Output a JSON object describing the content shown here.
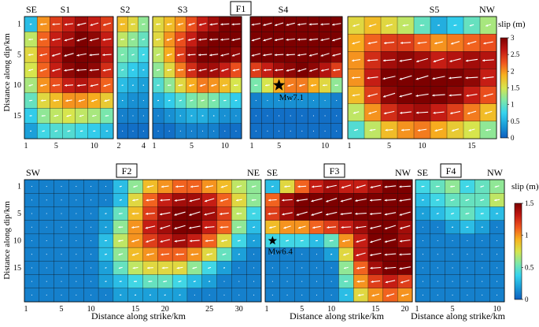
{
  "figure": {
    "top_ylabel": "Distance along dip/km",
    "bottom_ylabel": "Distance along dip/km",
    "xlabel": "Distance along strike/km",
    "grid_colors": {
      "cell_border": "#111111",
      "arrow": "#ffffff"
    }
  },
  "colormap": {
    "name": "jet",
    "stops": [
      "#0f5fbf",
      "#1a9cd8",
      "#36d3ee",
      "#7ee8a8",
      "#d7e54d",
      "#f7b21f",
      "#f0561f",
      "#c21913",
      "#7d0000"
    ]
  },
  "colorbars": [
    {
      "id": "top",
      "title": "slip (m)",
      "min": 0,
      "max": 3,
      "ticks": [
        "0",
        "0.5",
        "1",
        "1.5",
        "2",
        "2.5",
        "3"
      ]
    },
    {
      "id": "bottom",
      "title": "slip (m)",
      "min": 0,
      "max": 1.5,
      "ticks": [
        "0",
        "0.5",
        "1",
        "1.5"
      ]
    }
  ],
  "chart_data": [
    {
      "type": "heatmap",
      "id": "S1",
      "row": "top",
      "fault_label": "S1",
      "corner_left": "SE",
      "rows": 8,
      "cols": 7,
      "xticks": [
        {
          "label": "1",
          "col": 0
        },
        {
          "label": "5",
          "col": 2
        },
        {
          "label": "10",
          "col": 5
        }
      ],
      "yticks": [
        {
          "label": "1",
          "row": 0
        },
        {
          "label": "5",
          "row": 2
        },
        {
          "label": "10",
          "row": 4
        },
        {
          "label": "15",
          "row": 6
        }
      ],
      "values": [
        [
          0.6,
          2.0,
          2.4,
          2.6,
          2.8,
          2.6,
          2.4
        ],
        [
          1.4,
          2.2,
          2.6,
          2.8,
          3.0,
          2.9,
          2.6
        ],
        [
          1.6,
          2.3,
          2.7,
          3.0,
          3.0,
          3.0,
          2.7
        ],
        [
          1.5,
          2.2,
          2.6,
          2.9,
          3.0,
          2.9,
          2.5
        ],
        [
          1.3,
          2.0,
          2.3,
          2.6,
          2.7,
          2.5,
          2.2
        ],
        [
          1.0,
          1.6,
          1.8,
          2.0,
          2.0,
          1.9,
          1.7
        ],
        [
          0.7,
          1.2,
          1.4,
          1.5,
          1.4,
          1.3,
          1.1
        ],
        [
          0.4,
          0.8,
          0.9,
          0.9,
          0.8,
          0.7,
          0.6
        ]
      ]
    },
    {
      "type": "heatmap",
      "id": "S2",
      "row": "top",
      "fault_label": "S2",
      "rows": 8,
      "cols": 3,
      "xticks": [
        {
          "label": "2",
          "col": 0
        },
        {
          "label": "4",
          "col": 2
        }
      ],
      "yticks": [],
      "values": [
        [
          1.8,
          1.6,
          1.2
        ],
        [
          1.4,
          1.2,
          1.0
        ],
        [
          1.1,
          1.0,
          0.8
        ],
        [
          0.9,
          0.7,
          0.6
        ],
        [
          0.6,
          0.5,
          0.4
        ],
        [
          0.4,
          0.3,
          0.3
        ],
        [
          0.2,
          0.2,
          0.2
        ],
        [
          0.1,
          0.1,
          0.1
        ]
      ]
    },
    {
      "type": "heatmap",
      "id": "S3",
      "row": "top",
      "fault_label": "S3",
      "rows": 8,
      "cols": 8,
      "xticks": [
        {
          "label": "1",
          "col": 0
        },
        {
          "label": "5",
          "col": 3
        },
        {
          "label": "10",
          "col": 6
        }
      ],
      "yticks": [],
      "values": [
        [
          1.6,
          1.8,
          2.0,
          2.3,
          2.6,
          2.8,
          3.0,
          3.0
        ],
        [
          1.6,
          2.0,
          2.3,
          2.6,
          2.9,
          3.0,
          3.0,
          3.0
        ],
        [
          1.4,
          1.9,
          2.4,
          2.8,
          3.0,
          3.0,
          3.0,
          2.9
        ],
        [
          1.2,
          1.6,
          2.1,
          2.5,
          2.8,
          2.8,
          2.6,
          2.3
        ],
        [
          0.9,
          1.2,
          1.6,
          1.9,
          2.1,
          2.0,
          1.8,
          1.5
        ],
        [
          0.5,
          0.7,
          0.9,
          1.1,
          1.2,
          1.1,
          0.9,
          0.7
        ],
        [
          0.2,
          0.3,
          0.4,
          0.5,
          0.5,
          0.4,
          0.3,
          0.3
        ],
        [
          0.1,
          0.1,
          0.2,
          0.2,
          0.2,
          0.2,
          0.1,
          0.1
        ]
      ]
    },
    {
      "type": "heatmap",
      "id": "S4",
      "row": "top",
      "fault_label": "S4",
      "box_label": "F1",
      "rows": 8,
      "cols": 8,
      "xticks": [
        {
          "label": "1",
          "col": 0
        },
        {
          "label": "5",
          "col": 2
        },
        {
          "label": "10",
          "col": 6
        }
      ],
      "yticks": [],
      "epicenter": {
        "label": "Mw7.1",
        "row": 4,
        "col": 2
      },
      "values": [
        [
          3.0,
          3.0,
          3.0,
          3.0,
          3.0,
          3.0,
          3.0,
          3.0
        ],
        [
          3.0,
          3.0,
          3.0,
          3.0,
          3.0,
          3.0,
          3.0,
          3.0
        ],
        [
          3.0,
          3.0,
          3.0,
          3.0,
          3.0,
          3.0,
          3.0,
          2.9
        ],
        [
          2.4,
          2.6,
          2.8,
          2.9,
          3.0,
          2.9,
          2.7,
          2.4
        ],
        [
          1.1,
          1.5,
          1.9,
          2.1,
          2.1,
          1.9,
          1.6,
          1.2
        ],
        [
          0.2,
          0.3,
          0.3,
          0.3,
          0.3,
          0.3,
          0.3,
          0.2
        ],
        [
          0.1,
          0.1,
          0.1,
          0.1,
          0.1,
          0.1,
          0.1,
          0.1
        ],
        [
          0.1,
          0.1,
          0.1,
          0.1,
          0.1,
          0.1,
          0.1,
          0.1
        ]
      ]
    },
    {
      "type": "heatmap",
      "id": "S5",
      "row": "top",
      "fault_label": "S5",
      "corner_right": "NW",
      "rows": 7,
      "cols": 9,
      "xticks": [
        {
          "label": "1",
          "col": 0
        },
        {
          "label": "5",
          "col": 2
        },
        {
          "label": "10",
          "col": 4
        },
        {
          "label": "15",
          "col": 7
        }
      ],
      "yticks": [],
      "values": [
        [
          1.6,
          1.8,
          1.6,
          1.4,
          1.0,
          0.5,
          0.7,
          1.0,
          1.3
        ],
        [
          1.9,
          2.2,
          2.4,
          2.4,
          2.2,
          2.0,
          2.1,
          2.2,
          2.3
        ],
        [
          2.0,
          2.5,
          2.8,
          2.9,
          2.8,
          2.6,
          2.7,
          2.8,
          2.7
        ],
        [
          2.0,
          2.6,
          3.0,
          3.0,
          3.0,
          3.0,
          3.0,
          2.9,
          2.6
        ],
        [
          1.8,
          2.4,
          2.9,
          3.0,
          3.0,
          3.0,
          2.9,
          2.6,
          2.3
        ],
        [
          1.4,
          2.0,
          2.5,
          2.7,
          2.8,
          2.6,
          2.4,
          2.1,
          1.8
        ],
        [
          0.9,
          1.4,
          1.8,
          2.0,
          2.1,
          1.9,
          1.7,
          1.5,
          1.2
        ]
      ]
    },
    {
      "type": "heatmap",
      "id": "F2",
      "row": "bottom",
      "box_label": "F2",
      "corner_left": "SW",
      "corner_right": "NE",
      "rows": 9,
      "cols": 16,
      "xticks": [
        {
          "label": "1",
          "col": 0
        },
        {
          "label": "5",
          "col": 2
        },
        {
          "label": "10",
          "col": 4
        },
        {
          "label": "15",
          "col": 7
        },
        {
          "label": "20",
          "col": 9
        },
        {
          "label": "25",
          "col": 12
        },
        {
          "label": "30",
          "col": 14
        }
      ],
      "yticks": [
        {
          "label": "1",
          "row": 0
        },
        {
          "label": "5",
          "row": 2
        },
        {
          "label": "10",
          "row": 4
        },
        {
          "label": "15",
          "row": 6
        }
      ],
      "values": [
        [
          0.1,
          0.1,
          0.1,
          0.1,
          0.1,
          0.1,
          0.3,
          0.6,
          0.9,
          1.0,
          1.1,
          1.1,
          1.0,
          0.9,
          0.7,
          0.6
        ],
        [
          0.1,
          0.1,
          0.1,
          0.1,
          0.1,
          0.1,
          0.3,
          0.8,
          1.1,
          1.3,
          1.4,
          1.4,
          1.3,
          1.1,
          0.8,
          0.6
        ],
        [
          0.1,
          0.1,
          0.1,
          0.1,
          0.1,
          0.2,
          0.5,
          0.9,
          1.2,
          1.4,
          1.5,
          1.5,
          1.4,
          1.2,
          0.7,
          0.4
        ],
        [
          0.1,
          0.1,
          0.1,
          0.1,
          0.1,
          0.2,
          0.6,
          1.0,
          1.3,
          1.4,
          1.5,
          1.5,
          1.3,
          1.1,
          0.6,
          0.3
        ],
        [
          0.1,
          0.1,
          0.1,
          0.1,
          0.1,
          0.3,
          0.7,
          1.0,
          1.2,
          1.3,
          1.4,
          1.3,
          1.1,
          0.8,
          0.4,
          0.2
        ],
        [
          0.1,
          0.1,
          0.1,
          0.1,
          0.1,
          0.3,
          0.6,
          0.9,
          1.0,
          1.1,
          1.1,
          1.0,
          0.8,
          0.5,
          0.2,
          0.1
        ],
        [
          0.1,
          0.1,
          0.1,
          0.1,
          0.1,
          0.2,
          0.5,
          0.7,
          0.8,
          0.8,
          0.8,
          0.6,
          0.4,
          0.2,
          0.1,
          0.1
        ],
        [
          0.1,
          0.1,
          0.1,
          0.1,
          0.1,
          0.2,
          0.3,
          0.4,
          0.5,
          0.5,
          0.4,
          0.3,
          0.2,
          0.1,
          0.1,
          0.1
        ],
        [
          0.1,
          0.1,
          0.1,
          0.1,
          0.1,
          0.1,
          0.2,
          0.2,
          0.2,
          0.2,
          0.2,
          0.1,
          0.1,
          0.1,
          0.1,
          0.1
        ]
      ]
    },
    {
      "type": "heatmap",
      "id": "F3",
      "row": "bottom",
      "box_label": "F3",
      "corner_left": "SE",
      "corner_right": "NW",
      "rows": 9,
      "cols": 10,
      "xticks": [
        {
          "label": "1",
          "col": 0
        },
        {
          "label": "5",
          "col": 2
        },
        {
          "label": "10",
          "col": 4
        },
        {
          "label": "15",
          "col": 7
        },
        {
          "label": "20",
          "col": 9
        }
      ],
      "yticks": [],
      "epicenter": {
        "label": "Mw6.4",
        "row": 4,
        "col": 0
      },
      "values": [
        [
          0.3,
          0.8,
          1.1,
          1.3,
          1.4,
          1.3,
          1.3,
          1.4,
          1.5,
          1.5
        ],
        [
          1.1,
          1.4,
          1.5,
          1.5,
          1.5,
          1.5,
          1.5,
          1.5,
          1.5,
          1.5
        ],
        [
          1.2,
          1.4,
          1.5,
          1.5,
          1.5,
          1.5,
          1.5,
          1.5,
          1.5,
          1.5
        ],
        [
          0.9,
          1.0,
          1.0,
          1.1,
          1.2,
          1.3,
          1.4,
          1.5,
          1.5,
          1.4
        ],
        [
          0.4,
          0.4,
          0.4,
          0.3,
          0.5,
          1.0,
          1.3,
          1.5,
          1.5,
          1.4
        ],
        [
          0.1,
          0.1,
          0.1,
          0.1,
          0.2,
          0.8,
          1.3,
          1.5,
          1.5,
          1.5
        ],
        [
          0.1,
          0.1,
          0.1,
          0.1,
          0.1,
          0.6,
          1.1,
          1.4,
          1.5,
          1.5
        ],
        [
          0.1,
          0.1,
          0.1,
          0.1,
          0.1,
          0.5,
          1.0,
          1.2,
          1.3,
          1.2
        ],
        [
          0.1,
          0.1,
          0.1,
          0.1,
          0.1,
          0.3,
          0.8,
          1.0,
          1.1,
          1.0
        ]
      ]
    },
    {
      "type": "heatmap",
      "id": "F4",
      "row": "bottom",
      "box_label": "F4",
      "corner_left": "SE",
      "corner_right": "NW",
      "rows": 9,
      "cols": 6,
      "xticks": [
        {
          "label": "1",
          "col": 0
        },
        {
          "label": "5",
          "col": 2
        },
        {
          "label": "10",
          "col": 5
        }
      ],
      "yticks": [],
      "values": [
        [
          0.4,
          0.5,
          0.6,
          0.4,
          0.5,
          0.6
        ],
        [
          0.3,
          0.4,
          0.5,
          0.5,
          0.5,
          0.7
        ],
        [
          0.2,
          0.3,
          0.4,
          0.5,
          0.4,
          0.3
        ],
        [
          0.1,
          0.1,
          0.2,
          0.3,
          0.2,
          0.1
        ],
        [
          0.1,
          0.1,
          0.1,
          0.1,
          0.1,
          0.1
        ],
        [
          0.1,
          0.1,
          0.1,
          0.1,
          0.1,
          0.1
        ],
        [
          0.1,
          0.1,
          0.1,
          0.1,
          0.1,
          0.1
        ],
        [
          0.1,
          0.1,
          0.1,
          0.1,
          0.1,
          0.1
        ],
        [
          0.1,
          0.1,
          0.1,
          0.1,
          0.1,
          0.1
        ]
      ]
    }
  ]
}
